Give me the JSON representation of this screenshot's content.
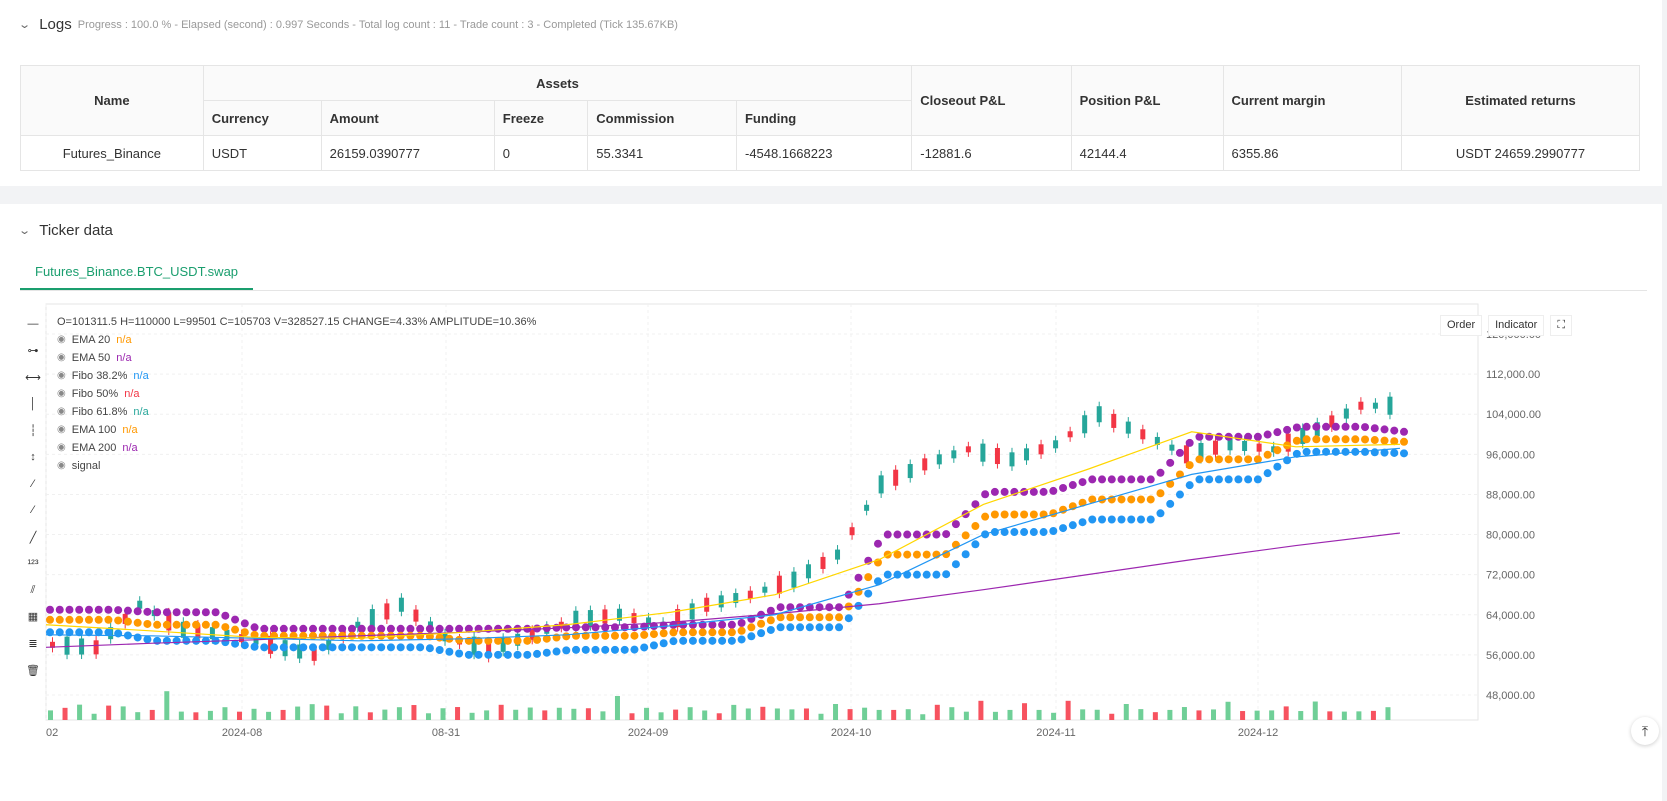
{
  "logs": {
    "title": "Logs",
    "status": "Progress : 100.0 % - Elapsed (second) : 0.997  Seconds - Total log count : 11 - Trade count : 3 - Completed (Tick 135.67KB)",
    "table": {
      "name_header": "Name",
      "assets_header": "Assets",
      "sub_headers": [
        "Currency",
        "Amount",
        "Freeze",
        "Commission",
        "Funding"
      ],
      "right_headers": [
        "Closeout P&L",
        "Position P&L",
        "Current margin",
        "Estimated returns"
      ],
      "row": {
        "name": "Futures_Binance",
        "currency": "USDT",
        "amount": "26159.0390777",
        "freeze": "0",
        "commission": "55.3341",
        "funding": "-4548.1668223",
        "closeout_pl": "-12881.6",
        "position_pl": "42144.4",
        "current_margin": "6355.86",
        "estimated_returns": "USDT 24659.2990777"
      }
    }
  },
  "ticker": {
    "title": "Ticker data",
    "tab_label": "Futures_Binance.BTC_USDT.swap",
    "ohlc": "O=101311.5 H=110000 L=99501 C=105703 V=328527.15 CHANGE=4.33% AMPLITUDE=10.36%",
    "legend": [
      {
        "label": "EMA 20",
        "value": "n/a",
        "color": "#ff9800"
      },
      {
        "label": "EMA 50",
        "value": "n/a",
        "color": "#9c27b0"
      },
      {
        "label": "Fibo 38.2%",
        "value": "n/a",
        "color": "#2196f3"
      },
      {
        "label": "Fibo 50%",
        "value": "n/a",
        "color": "#f23645"
      },
      {
        "label": "Fibo 61.8%",
        "value": "n/a",
        "color": "#26a69a"
      },
      {
        "label": "EMA 100",
        "value": "n/a",
        "color": "#ff9800"
      },
      {
        "label": "EMA 200",
        "value": "n/a",
        "color": "#9c27b0"
      },
      {
        "label": "signal",
        "value": "",
        "color": "#888888"
      }
    ],
    "buttons": {
      "order": "Order",
      "indicator": "Indicator",
      "expand": "⛶"
    },
    "tools": [
      "—",
      "⊶",
      "⟷",
      "│",
      "┆",
      "↕",
      "⁄",
      "⁄",
      "╱",
      "¹²³",
      "⫽",
      "▦",
      "≣",
      "🗑"
    ]
  },
  "chart_data": {
    "type": "line",
    "y_ticks": [
      "120,000.00",
      "112,000.00",
      "104,000.00",
      "96,000.00",
      "88,000.00",
      "80,000.00",
      "72,000.00",
      "64,000.00",
      "56,000.00",
      "48,000.00"
    ],
    "x_ticks": [
      "02",
      "2024-08",
      "08-31",
      "2024-09",
      "2024-10",
      "2024-11",
      "2024-12"
    ],
    "ylim": [
      45000,
      122000
    ],
    "series": [
      {
        "name": "EMA 200",
        "color": "#9c27b0",
        "values": [
          57500,
          58300,
          59000,
          59800,
          60500,
          61400,
          62500,
          64200,
          66200,
          69000,
          72000,
          75000,
          77800,
          80300
        ]
      },
      {
        "name": "EMA 20",
        "color": "#ffd600",
        "values": [
          62000,
          60800,
          59500,
          59300,
          60500,
          62000,
          64500,
          68000,
          75000,
          86000,
          93000,
          100500,
          97500,
          98000
        ]
      },
      {
        "name": "EMA 50",
        "color": "#2196f3",
        "values": [
          60000,
          59800,
          59300,
          58800,
          59200,
          60000,
          61800,
          64000,
          70000,
          80000,
          86000,
          92000,
          95500,
          97200
        ]
      }
    ],
    "dots": [
      {
        "name": "Fibo 38.2%",
        "color": "#9c27b0",
        "values": [
          65000,
          64500,
          61200,
          61200,
          61200,
          61500,
          62000,
          65500,
          80000,
          88500,
          91000,
          99500,
          101500,
          100500
        ]
      },
      {
        "name": "Fibo 50%",
        "color": "#ff9800",
        "values": [
          63000,
          62000,
          59800,
          59800,
          58800,
          59800,
          60500,
          63500,
          76000,
          84000,
          87000,
          95000,
          99000,
          98500
        ]
      },
      {
        "name": "Fibo 61.8%",
        "color": "#2196f3",
        "values": [
          60500,
          58800,
          57500,
          57500,
          56000,
          57000,
          58800,
          61500,
          72000,
          80500,
          83000,
          91000,
          96500,
          96200
        ]
      }
    ],
    "candles": [
      58000,
      57500,
      66000,
      61000,
      60000,
      58000,
      56000,
      62000,
      66000,
      59500,
      57000,
      60000,
      63000,
      64000,
      62000,
      66000,
      68000,
      71000,
      76000,
      90000,
      94000,
      97000,
      95000,
      98000,
      104000,
      100000,
      96000,
      98000,
      97000,
      101000,
      105700
    ],
    "volumes": [
      0.5,
      0.4,
      0.6,
      0.3,
      0.45,
      0.5,
      0.35,
      0.3,
      1.0,
      0.35,
      0.4,
      0.3,
      0.5,
      0.4,
      0.35,
      0.3,
      0.45,
      0.4,
      0.55,
      0.6,
      0.35,
      0.45,
      0.3,
      0.5,
      0.4,
      0.55,
      0.3,
      0.35,
      0.45,
      0.3,
      0.5
    ]
  }
}
